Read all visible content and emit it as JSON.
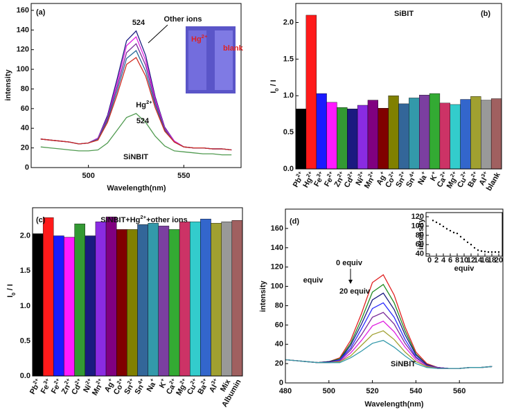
{
  "chart_data": [
    {
      "type": "line",
      "label": "(a)",
      "xlabel": "Wavelength(nm)",
      "ylabel": "intensity",
      "xlim": [
        470,
        580
      ],
      "ylim": [
        0,
        167
      ],
      "xticks": [
        500,
        550
      ],
      "yticks": [
        0,
        20,
        40,
        60,
        80,
        100,
        120,
        140,
        160
      ],
      "annotations": [
        "524",
        "Other ions",
        "Hg2+",
        "524",
        "SiNBIT"
      ],
      "inset_labels": [
        "Hg2+",
        "blank"
      ],
      "x": [
        475,
        480,
        485,
        490,
        495,
        500,
        505,
        510,
        515,
        520,
        525,
        530,
        535,
        540,
        545,
        550,
        555,
        560,
        565,
        570,
        575
      ],
      "series": [
        {
          "color": "#1a1a80",
          "values": [
            29,
            28,
            27,
            26,
            24,
            25,
            30,
            53,
            90,
            129,
            139,
            114,
            72,
            41,
            27,
            21,
            20,
            20,
            19,
            19,
            18
          ]
        },
        {
          "color": "#e020e0",
          "values": [
            29,
            28,
            27,
            26,
            24,
            25,
            30,
            51,
            86,
            124,
            133,
            109,
            70,
            40,
            27,
            21,
            20,
            20,
            19,
            19,
            18
          ]
        },
        {
          "color": "#7a2a9a",
          "values": [
            29,
            28,
            27,
            26,
            24,
            25,
            29,
            50,
            82,
            117,
            126,
            104,
            67,
            39,
            26,
            21,
            20,
            20,
            19,
            19,
            18
          ]
        },
        {
          "color": "#2a6a9a",
          "values": [
            29,
            28,
            27,
            26,
            24,
            25,
            29,
            48,
            78,
            111,
            119,
            98,
            64,
            38,
            26,
            21,
            20,
            20,
            19,
            19,
            18
          ]
        },
        {
          "color": "#d02a20",
          "values": [
            29,
            28,
            27,
            26,
            24,
            25,
            28,
            46,
            74,
            105,
            112,
            93,
            61,
            37,
            26,
            21,
            20,
            20,
            19,
            19,
            18
          ]
        },
        {
          "color": "#4f9a4f",
          "values": [
            21,
            20,
            19,
            18,
            17,
            17,
            18,
            25,
            38,
            51,
            55,
            46,
            32,
            22,
            17,
            16,
            15,
            14,
            14,
            13,
            13
          ]
        }
      ]
    },
    {
      "type": "bar",
      "label": "(b)",
      "title": "SiBIT",
      "ylabel": "I0 / I",
      "ylim": [
        0,
        2.26
      ],
      "yticks": [
        {
          "value": 0,
          "label": "0.0"
        },
        {
          "value": 0.5,
          "label": "0.5"
        },
        {
          "value": 1,
          "label": "1.0"
        },
        {
          "value": 1.5,
          "label": "1.5"
        },
        {
          "value": 2,
          "label": "2.0"
        }
      ],
      "categories": [
        "Pb2+",
        "Hg2+",
        "Fe3+",
        "Fe2+",
        "Zn2+",
        "Cd2+",
        "Ni2+",
        "Mn2+",
        "Ag+",
        "Co2+",
        "Sn2+",
        "Sn4+",
        "Na+",
        "K+",
        "Ca2+",
        "Mg2+",
        "Cu2+",
        "Ba2+",
        "Al3+",
        "blank"
      ],
      "values": [
        0.82,
        2.1,
        1.03,
        0.91,
        0.84,
        0.82,
        0.87,
        0.94,
        0.83,
        1.0,
        0.89,
        0.97,
        1.01,
        1.03,
        0.9,
        0.88,
        0.95,
        0.99,
        0.94,
        0.96
      ],
      "colors": [
        "#000000",
        "#ff1a1a",
        "#1a1aff",
        "#ff1aff",
        "#339933",
        "#1a1a80",
        "#8a2be2",
        "#800080",
        "#800000",
        "#808000",
        "#336699",
        "#3399aa",
        "#7b3fa0",
        "#33aa33",
        "#cc3366",
        "#33cccc",
        "#3366cc",
        "#a0a030",
        "#999999",
        "#a06060"
      ]
    },
    {
      "type": "bar",
      "label": "(c)",
      "title": "SiNBIT+Hg2++other ions",
      "ylabel": "I0 / I",
      "ylim": [
        0,
        2.4
      ],
      "yticks": [
        {
          "value": 0,
          "label": "0.0"
        },
        {
          "value": 0.5,
          "label": "0.5"
        },
        {
          "value": 1,
          "label": "1.0"
        },
        {
          "value": 1.5,
          "label": "1.5"
        },
        {
          "value": 2,
          "label": "2.0"
        }
      ],
      "categories": [
        "Pb2+",
        "Fe3+",
        "Fe2+",
        "Zn2+",
        "Cd2+",
        "Ni2+",
        "Mn2+",
        "Ag+",
        "Co2+",
        "Sn2+",
        "Sn4+",
        "Na+",
        "K+",
        "Ca2+",
        "Mg2+",
        "Cu2+",
        "Ba2+",
        "Al3+",
        "Mix",
        "Albumin"
      ],
      "values": [
        2.03,
        2.26,
        2.0,
        1.98,
        2.17,
        2.0,
        2.2,
        2.27,
        2.09,
        2.09,
        2.16,
        2.18,
        2.14,
        2.09,
        2.2,
        2.2,
        2.24,
        2.18,
        2.2,
        2.22
      ],
      "colors": [
        "#000000",
        "#ff1a1a",
        "#1a1aff",
        "#ff1aff",
        "#339933",
        "#1a1a80",
        "#8a2be2",
        "#800080",
        "#800000",
        "#808000",
        "#336699",
        "#3399aa",
        "#7b3fa0",
        "#33aa33",
        "#cc3366",
        "#33cccc",
        "#3366cc",
        "#a0a030",
        "#999999",
        "#a06060"
      ]
    },
    {
      "type": "line",
      "label": "(d)",
      "xlabel": "Wavelength(nm)",
      "ylabel": "intensity",
      "xlim": [
        480,
        580
      ],
      "ylim": [
        0,
        180
      ],
      "xticks": [
        480,
        500,
        520,
        540,
        560
      ],
      "yticks": [
        0,
        20,
        40,
        60,
        80,
        100,
        120,
        140,
        160
      ],
      "annotations": [
        "0 equiv",
        "equiv",
        "20 equiv",
        "SiNBIT"
      ],
      "x": [
        480,
        485,
        490,
        495,
        500,
        505,
        510,
        515,
        520,
        525,
        530,
        535,
        540,
        545,
        550,
        555,
        560,
        565,
        570,
        575
      ],
      "series": [
        {
          "color": "#e02020",
          "values": [
            24,
            23,
            22,
            21,
            22,
            26,
            44,
            72,
            104,
            112,
            91,
            58,
            32,
            20,
            16,
            15,
            15,
            16,
            16,
            17
          ]
        },
        {
          "color": "#208a20",
          "values": [
            24,
            23,
            22,
            21,
            22,
            25,
            41,
            66,
            94,
            102,
            83,
            54,
            30,
            19,
            16,
            15,
            15,
            16,
            16,
            17
          ]
        },
        {
          "color": "#1a1a80",
          "values": [
            24,
            23,
            22,
            21,
            22,
            24,
            39,
            61,
            86,
            93,
            76,
            50,
            29,
            19,
            16,
            15,
            15,
            16,
            16,
            17
          ]
        },
        {
          "color": "#2a2aff",
          "values": [
            24,
            23,
            22,
            21,
            21,
            24,
            36,
            56,
            77,
            83,
            68,
            45,
            27,
            18,
            16,
            15,
            15,
            16,
            16,
            17
          ]
        },
        {
          "color": "#7a2a9a",
          "values": [
            24,
            23,
            22,
            21,
            21,
            23,
            34,
            50,
            68,
            73,
            61,
            41,
            26,
            18,
            16,
            15,
            15,
            16,
            16,
            17
          ]
        },
        {
          "color": "#e020e0",
          "values": [
            24,
            23,
            22,
            21,
            21,
            22,
            31,
            44,
            59,
            64,
            53,
            37,
            24,
            17,
            15,
            15,
            15,
            16,
            16,
            17
          ]
        },
        {
          "color": "#a0a030",
          "values": [
            24,
            23,
            22,
            21,
            21,
            22,
            28,
            39,
            50,
            54,
            45,
            32,
            22,
            17,
            15,
            15,
            15,
            16,
            16,
            17
          ]
        },
        {
          "color": "#3399aa",
          "values": [
            24,
            23,
            22,
            21,
            21,
            21,
            26,
            33,
            41,
            44,
            37,
            28,
            20,
            16,
            15,
            15,
            15,
            16,
            16,
            17
          ]
        }
      ]
    },
    {
      "type": "scatter",
      "xlabel": "equiv",
      "ylabel": "intensity",
      "xlim": [
        -1,
        21
      ],
      "ylim": [
        35,
        129
      ],
      "xticks": [
        0,
        2,
        4,
        6,
        8,
        10,
        12,
        14,
        16,
        18,
        20
      ],
      "yticks": [
        40,
        60,
        80,
        100,
        120
      ],
      "x": [
        1,
        2,
        3,
        4,
        5,
        6,
        7,
        8,
        9,
        10,
        11,
        12,
        13,
        14,
        15,
        16,
        17,
        18,
        19,
        20
      ],
      "values": [
        112,
        108,
        104,
        99,
        94,
        90,
        86,
        84,
        77,
        71,
        65,
        60,
        53,
        48,
        46,
        45,
        44,
        44,
        44,
        44
      ],
      "color": "#000000"
    }
  ]
}
